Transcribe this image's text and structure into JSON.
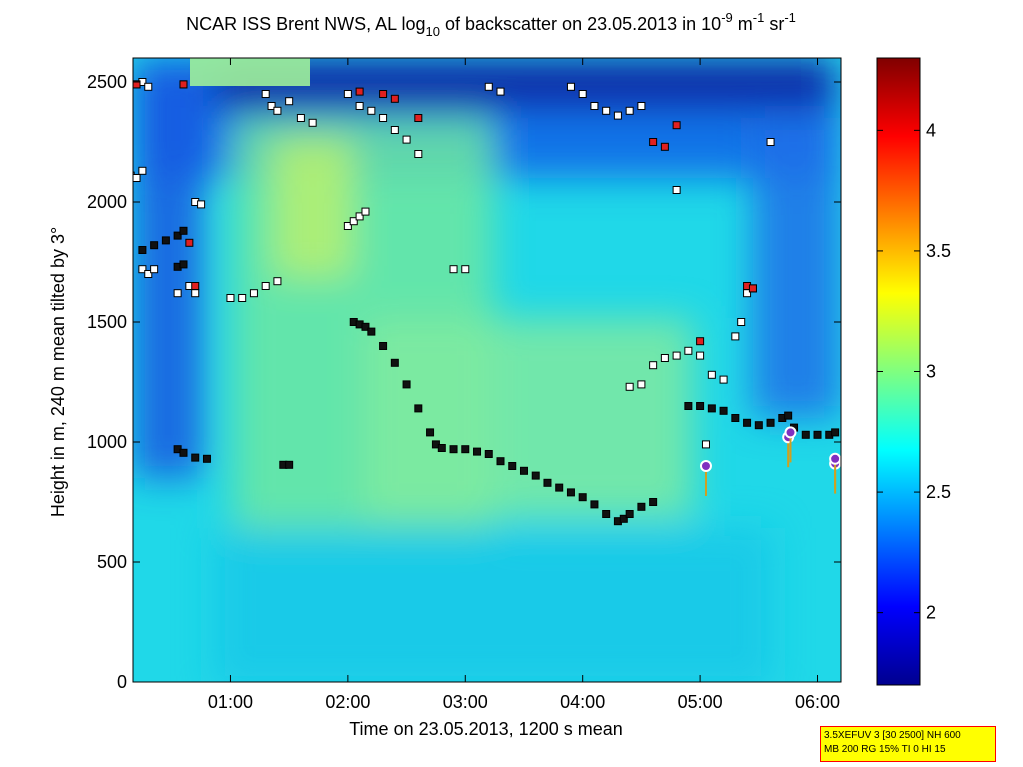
{
  "chart_data": {
    "type": "heatmap",
    "title_parts": {
      "pre": "NCAR ISS Brent NWS, AL log",
      "sub": "10",
      "mid": " of backscatter on 23.05.2013 in 10",
      "sup1": "-9",
      "m": " m",
      "sup2": "-1",
      "sr": " sr",
      "sup3": "-1"
    },
    "xlabel": "Time on 23.05.2013, 1200 s mean",
    "ylabel": "Height in m, 240 m mean tilted by 3°",
    "x_unit": "hours UTC",
    "xlim": [
      0.17,
      6.2
    ],
    "ylim": [
      0,
      2600
    ],
    "xticks": [
      {
        "v": 1,
        "label": "01:00"
      },
      {
        "v": 2,
        "label": "02:00"
      },
      {
        "v": 3,
        "label": "03:00"
      },
      {
        "v": 4,
        "label": "04:00"
      },
      {
        "v": 5,
        "label": "05:00"
      },
      {
        "v": 6,
        "label": "06:00"
      }
    ],
    "yticks": [
      {
        "v": 0,
        "label": "0"
      },
      {
        "v": 500,
        "label": "500"
      },
      {
        "v": 1000,
        "label": "1000"
      },
      {
        "v": 1500,
        "label": "1500"
      },
      {
        "v": 2000,
        "label": "2000"
      },
      {
        "v": 2500,
        "label": "2500"
      }
    ],
    "colorbar": {
      "colormap": "jet",
      "clim": [
        1.7,
        4.3
      ],
      "ticks": [
        {
          "v": 2,
          "label": "2"
        },
        {
          "v": 2.5,
          "label": "2.5"
        },
        {
          "v": 3,
          "label": "3"
        },
        {
          "v": 3.5,
          "label": "3.5"
        },
        {
          "v": 4,
          "label": "4"
        }
      ]
    },
    "mixing_layer_points": [
      [
        2.05,
        1500
      ],
      [
        2.1,
        1490
      ],
      [
        2.15,
        1480
      ],
      [
        2.2,
        1460
      ],
      [
        2.3,
        1400
      ],
      [
        2.4,
        1330
      ],
      [
        2.5,
        1240
      ],
      [
        2.6,
        1140
      ],
      [
        2.7,
        1040
      ],
      [
        2.75,
        990
      ],
      [
        2.8,
        975
      ],
      [
        2.9,
        970
      ],
      [
        3.0,
        970
      ],
      [
        3.1,
        960
      ],
      [
        3.2,
        950
      ],
      [
        3.3,
        920
      ],
      [
        3.4,
        900
      ],
      [
        3.5,
        880
      ],
      [
        3.6,
        860
      ],
      [
        3.7,
        830
      ],
      [
        3.8,
        810
      ],
      [
        3.9,
        790
      ],
      [
        4.0,
        770
      ],
      [
        4.1,
        740
      ],
      [
        4.2,
        700
      ],
      [
        4.3,
        670
      ],
      [
        4.35,
        680
      ],
      [
        4.4,
        700
      ],
      [
        4.5,
        730
      ],
      [
        4.6,
        750
      ],
      [
        4.9,
        1150
      ],
      [
        5.0,
        1150
      ],
      [
        5.1,
        1140
      ],
      [
        5.2,
        1130
      ],
      [
        5.3,
        1100
      ],
      [
        5.4,
        1080
      ],
      [
        5.5,
        1070
      ],
      [
        5.6,
        1080
      ],
      [
        5.7,
        1100
      ],
      [
        5.75,
        1110
      ],
      [
        5.8,
        1060
      ],
      [
        5.9,
        1030
      ],
      [
        6.0,
        1030
      ],
      [
        6.1,
        1030
      ],
      [
        6.15,
        1040
      ],
      [
        0.55,
        970
      ],
      [
        0.6,
        955
      ],
      [
        0.7,
        935
      ],
      [
        0.8,
        930
      ],
      [
        1.45,
        905
      ],
      [
        1.5,
        905
      ],
      [
        0.25,
        1800
      ],
      [
        0.35,
        1820
      ],
      [
        0.45,
        1840
      ],
      [
        0.55,
        1860
      ],
      [
        0.6,
        1880
      ],
      [
        0.55,
        1730
      ],
      [
        0.6,
        1740
      ]
    ],
    "cloud_or_other_points": [
      [
        0.2,
        2490
      ],
      [
        0.25,
        2500
      ],
      [
        0.3,
        2480
      ],
      [
        0.6,
        2490
      ],
      [
        0.15,
        2110
      ],
      [
        0.2,
        2100
      ],
      [
        0.25,
        2130
      ],
      [
        0.7,
        2000
      ],
      [
        0.75,
        1990
      ],
      [
        0.25,
        1720
      ],
      [
        0.3,
        1700
      ],
      [
        0.35,
        1720
      ],
      [
        0.55,
        1620
      ],
      [
        0.65,
        1650
      ],
      [
        0.7,
        1620
      ],
      [
        1.0,
        1600
      ],
      [
        1.1,
        1600
      ],
      [
        1.2,
        1620
      ],
      [
        1.3,
        1650
      ],
      [
        1.4,
        1670
      ],
      [
        1.3,
        2450
      ],
      [
        1.35,
        2400
      ],
      [
        1.4,
        2380
      ],
      [
        1.5,
        2420
      ],
      [
        1.6,
        2350
      ],
      [
        1.7,
        2330
      ],
      [
        2.0,
        1900
      ],
      [
        2.05,
        1920
      ],
      [
        2.1,
        1940
      ],
      [
        2.15,
        1960
      ],
      [
        2.0,
        2450
      ],
      [
        2.1,
        2400
      ],
      [
        2.2,
        2380
      ],
      [
        2.3,
        2350
      ],
      [
        2.4,
        2300
      ],
      [
        2.5,
        2260
      ],
      [
        2.6,
        2200
      ],
      [
        2.9,
        1720
      ],
      [
        3.0,
        1720
      ],
      [
        3.2,
        2480
      ],
      [
        3.3,
        2460
      ],
      [
        3.9,
        2480
      ],
      [
        4.0,
        2450
      ],
      [
        4.1,
        2400
      ],
      [
        4.2,
        2380
      ],
      [
        4.3,
        2360
      ],
      [
        4.4,
        2380
      ],
      [
        4.5,
        2400
      ],
      [
        4.4,
        1230
      ],
      [
        4.5,
        1240
      ],
      [
        4.6,
        1320
      ],
      [
        4.7,
        1350
      ],
      [
        4.8,
        1360
      ],
      [
        4.9,
        1380
      ],
      [
        5.0,
        1360
      ],
      [
        5.1,
        1280
      ],
      [
        5.2,
        1260
      ],
      [
        5.3,
        1440
      ],
      [
        5.35,
        1500
      ],
      [
        5.4,
        1620
      ],
      [
        5.45,
        1640
      ],
      [
        5.6,
        2250
      ],
      [
        4.8,
        2050
      ],
      [
        5.05,
        990
      ]
    ],
    "red_points": [
      [
        0.2,
        2490
      ],
      [
        0.6,
        2490
      ],
      [
        0.7,
        1650
      ],
      [
        0.65,
        1830
      ],
      [
        2.1,
        2460
      ],
      [
        2.3,
        2450
      ],
      [
        2.4,
        2430
      ],
      [
        2.6,
        2350
      ],
      [
        4.6,
        2250
      ],
      [
        4.7,
        2230
      ],
      [
        4.8,
        2320
      ],
      [
        5.0,
        1420
      ],
      [
        5.4,
        1650
      ],
      [
        5.45,
        1640
      ]
    ],
    "cloud_base_markers": [
      [
        5.05,
        900
      ],
      [
        5.75,
        1020
      ],
      [
        5.77,
        1040
      ],
      [
        6.15,
        910
      ],
      [
        6.15,
        930
      ]
    ]
  },
  "annotation": {
    "line1": "3.5XEFUV 3 [30 2500] NH 600",
    "line2": "MB 200 RG 15% TI 0 HI 15"
  }
}
